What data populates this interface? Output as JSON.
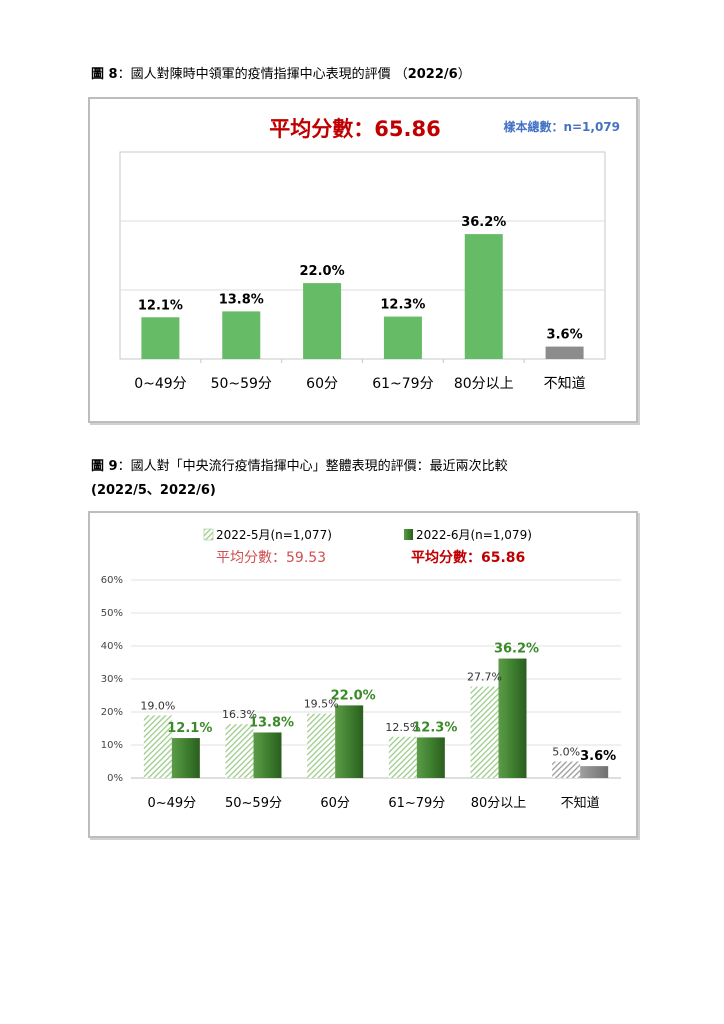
{
  "figure8": {
    "caption_prefix": "圖 8",
    "caption_text": "：國人對陳時中領軍的疫情指揮中心表現的評價 （",
    "caption_date": "2022/6",
    "caption_end": "）",
    "chart_data": {
      "type": "bar",
      "title": "平均分數：65.86",
      "subtitle": "樣本總數：n=1,079",
      "categories": [
        "0~49分",
        "50~59分",
        "60分",
        "61~79分",
        "80分以上",
        "不知道"
      ],
      "values": [
        12.1,
        13.8,
        22.0,
        12.3,
        36.2,
        3.6
      ],
      "value_labels": [
        "12.1%",
        "13.8%",
        "22.0%",
        "12.3%",
        "36.2%",
        "3.6%"
      ],
      "ylim": [
        0,
        60
      ],
      "grid": true,
      "colors": {
        "bar": "#66bb66",
        "dont_know": "#8c8c8c",
        "title": "#c00000",
        "subtitle": "#4472c4"
      }
    }
  },
  "figure9": {
    "caption_prefix": "圖 9",
    "caption_text": "：國人對「中央流行疫情指揮中心」整體表現的評價：最近兩次比較",
    "caption_line2": "(2022/5、2022/6)",
    "chart_data": {
      "type": "bar",
      "categories": [
        "0~49分",
        "50~59分",
        "60分",
        "61~79分",
        "80分以上",
        "不知道"
      ],
      "series": [
        {
          "name": "2022-5月(n=1,077)",
          "values": [
            19.0,
            16.3,
            19.5,
            12.5,
            27.7,
            5.0
          ],
          "value_labels": [
            "19.0%",
            "16.3%",
            "19.5%",
            "12.5%",
            "27.7%",
            "5.0%"
          ],
          "average": "平均分數：59.53"
        },
        {
          "name": "2022-6月(n=1,079)",
          "values": [
            12.1,
            13.8,
            22.0,
            12.3,
            36.2,
            3.6
          ],
          "value_labels": [
            "12.1%",
            "13.8%",
            "22.0%",
            "12.3%",
            "36.2%",
            "3.6%"
          ],
          "average": "平均分數：65.86"
        }
      ],
      "yticks": [
        "0%",
        "10%",
        "20%",
        "30%",
        "40%",
        "50%",
        "60%"
      ],
      "ylim": [
        0,
        60
      ],
      "grid": true,
      "legend": "top",
      "colors": {
        "may": "#9ccc8a",
        "june": "#3a7a2a",
        "label_june": "#3a8a2a",
        "label_dk": "#000000",
        "avg_may": "#d05050",
        "avg_june": "#c00000"
      }
    }
  }
}
